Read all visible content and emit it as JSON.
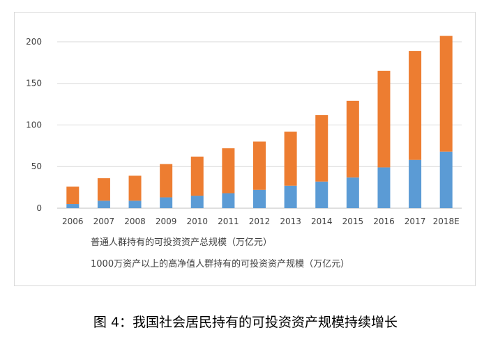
{
  "figure_caption": "图 4：我国社会居民持有的可投资资产规模持续增长",
  "chart_data": {
    "type": "bar",
    "stacked": true,
    "categories": [
      "2006",
      "2007",
      "2008",
      "2009",
      "2010",
      "2011",
      "2012",
      "2013",
      "2014",
      "2015",
      "2016",
      "2017",
      "2018E"
    ],
    "series": [
      {
        "name": "1000万资产以上的高净值人群持有的可投资资产规模（万亿元）",
        "color": "#5b9bd5",
        "values": [
          5,
          9,
          9,
          13,
          15,
          18,
          22,
          27,
          32,
          37,
          49,
          58,
          68
        ]
      },
      {
        "name": "普通人群持有的可投资资产总规模（万亿元）",
        "color": "#ed7d31",
        "values": [
          21,
          27,
          30,
          40,
          47,
          54,
          58,
          65,
          80,
          92,
          116,
          131,
          139
        ]
      }
    ],
    "ylim": [
      0,
      210
    ],
    "yticks": [
      0,
      50,
      100,
      150,
      200
    ],
    "grid": true,
    "legend_placement": "bottom"
  }
}
